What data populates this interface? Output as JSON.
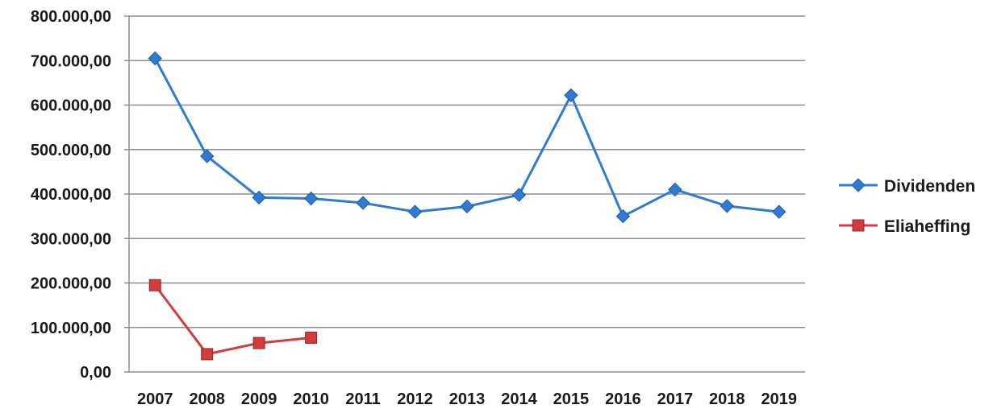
{
  "chart_data": {
    "type": "line",
    "categories": [
      "2007",
      "2008",
      "2009",
      "2010",
      "2011",
      "2012",
      "2013",
      "2014",
      "2015",
      "2016",
      "2017",
      "2018",
      "2019"
    ],
    "series": [
      {
        "name": "Dividenden",
        "color": "#2e7bd1",
        "marker": "diamond",
        "values": [
          705000,
          485000,
          392000,
          390000,
          380000,
          360000,
          372000,
          398000,
          622000,
          350000,
          410000,
          373000,
          360000
        ]
      },
      {
        "name": "Eliaheffing",
        "color": "#d13c3c",
        "marker": "square",
        "values": [
          195000,
          40000,
          65000,
          77000,
          null,
          null,
          null,
          null,
          null,
          null,
          null,
          null,
          null
        ]
      }
    ],
    "yticks": [
      "0,00",
      "100.000,00",
      "200.000,00",
      "300.000,00",
      "400.000,00",
      "500.000,00",
      "600.000,00",
      "700.000,00",
      "800.000,00"
    ],
    "ylim": [
      0,
      800000
    ],
    "grid": true,
    "legend_position": "right"
  }
}
